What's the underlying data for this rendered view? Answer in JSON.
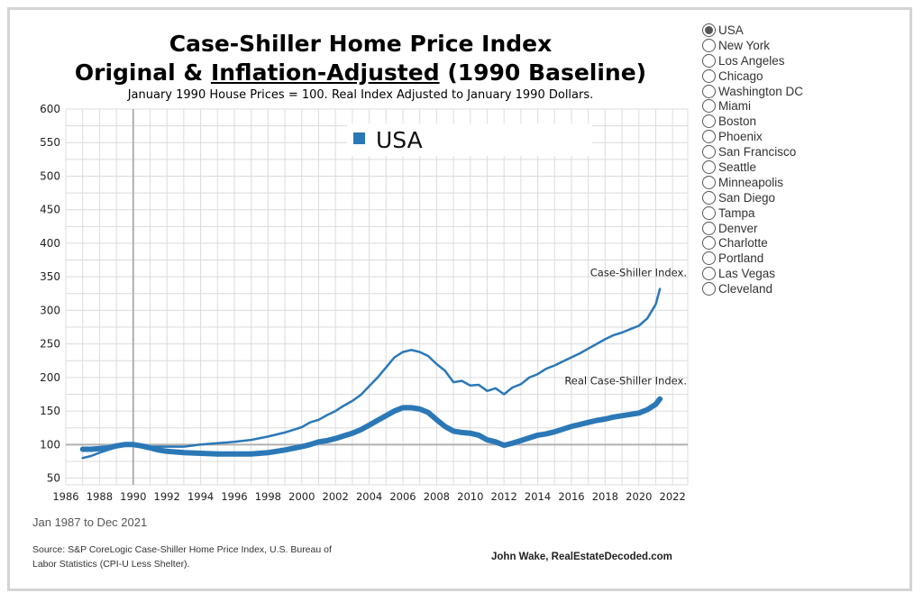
{
  "titles": {
    "line1": "Case-Shiller Home Price Index",
    "line2_prefix": "Original & ",
    "line2_underlined": "Inflation-Adjusted",
    "line2_suffix": " (1990 Baseline)",
    "subtitle": "January 1990 House Prices = 100. Real Index Adjusted to January 1990 Dollars."
  },
  "selector": {
    "selected": "USA",
    "options": [
      "USA",
      "New York",
      "Los Angeles",
      "Chicago",
      "Washington DC",
      "Miami",
      "Boston",
      "Phoenix",
      "San Francisco",
      "Seattle",
      "Minneapolis",
      "San Diego",
      "Tampa",
      "Denver",
      "Charlotte",
      "Portland",
      "Las Vegas",
      "Cleveland"
    ]
  },
  "footer": {
    "range": "Jan 1987 to Dec 2021",
    "source": "Source: S&P CoreLogic Case-Shiller Home Price Index, U.S. Bureau of Labor Statistics (CPI-U Less Shelter).",
    "credit": "John Wake, RealEstateDecoded.com"
  },
  "chart_data": {
    "type": "line",
    "legend": "USA",
    "xlim": [
      1986,
      2022.9
    ],
    "ylim": [
      40,
      600
    ],
    "x_ticks": [
      "1986",
      "1988",
      "1990",
      "1992",
      "1994",
      "1996",
      "1998",
      "2000",
      "2002",
      "2004",
      "2006",
      "2008",
      "2010",
      "2012",
      "2014",
      "2016",
      "2018",
      "2020",
      "2022"
    ],
    "y_ticks": [
      50,
      100,
      150,
      200,
      250,
      300,
      350,
      400,
      450,
      500,
      550,
      600
    ],
    "reference_line_y": 100,
    "reference_line_x": 1990,
    "colors": {
      "series": "#2b78b7",
      "grid": "#dcdcdc",
      "axis": "#b0b0b0"
    },
    "series": [
      {
        "name": "Case-Shiller Index.",
        "line_width": 2.5,
        "x": [
          1987,
          1987.5,
          1988,
          1988.5,
          1989,
          1989.5,
          1990,
          1990.5,
          1991,
          1992,
          1993,
          1994,
          1995,
          1996,
          1997,
          1998,
          1999,
          2000,
          2000.5,
          2001,
          2001.5,
          2002,
          2002.5,
          2003,
          2003.5,
          2004,
          2004.5,
          2005,
          2005.5,
          2006,
          2006.5,
          2007,
          2007.5,
          2008,
          2008.5,
          2009,
          2009.5,
          2010,
          2010.5,
          2011,
          2011.5,
          2012,
          2012.5,
          2013,
          2013.5,
          2014,
          2014.5,
          2015,
          2015.5,
          2016,
          2016.5,
          2017,
          2017.5,
          2018,
          2018.5,
          2019,
          2019.5,
          2020,
          2020.5,
          2021,
          2021.25
        ],
        "y": [
          80,
          83,
          88,
          92,
          96,
          99,
          100,
          99,
          97,
          97,
          97,
          100,
          102,
          104,
          107,
          112,
          118,
          126,
          133,
          137,
          144,
          150,
          158,
          165,
          174,
          187,
          200,
          215,
          230,
          238,
          241,
          238,
          232,
          220,
          210,
          193,
          195,
          188,
          189,
          180,
          184,
          175,
          185,
          190,
          200,
          205,
          213,
          218,
          224,
          230,
          236,
          243,
          250,
          257,
          263,
          267,
          272,
          277,
          288,
          309,
          332
        ]
      },
      {
        "name": "Real Case-Shiller Index.",
        "line_width": 6,
        "x": [
          1987,
          1987.5,
          1988,
          1988.5,
          1989,
          1989.5,
          1990,
          1990.5,
          1991,
          1991.5,
          1992,
          1992.5,
          1993,
          1994,
          1995,
          1996,
          1997,
          1998,
          1999,
          2000,
          2000.5,
          2001,
          2001.5,
          2002,
          2002.5,
          2003,
          2003.5,
          2004,
          2004.5,
          2005,
          2005.5,
          2006,
          2006.5,
          2007,
          2007.5,
          2008,
          2008.5,
          2009,
          2009.5,
          2010,
          2010.5,
          2011,
          2011.5,
          2012,
          2012.5,
          2013,
          2013.5,
          2014,
          2014.5,
          2015,
          2015.5,
          2016,
          2016.5,
          2017,
          2017.5,
          2018,
          2018.5,
          2019,
          2019.5,
          2020,
          2020.5,
          2021,
          2021.25
        ],
        "y": [
          93,
          93,
          94,
          95,
          98,
          100,
          100,
          98,
          95,
          92,
          90,
          89,
          88,
          87,
          86,
          86,
          86,
          88,
          92,
          97,
          100,
          104,
          106,
          109,
          113,
          117,
          122,
          129,
          136,
          143,
          150,
          155,
          155,
          153,
          148,
          137,
          127,
          120,
          118,
          117,
          114,
          107,
          104,
          99,
          102,
          106,
          110,
          114,
          116,
          119,
          123,
          127,
          130,
          133,
          136,
          138,
          141,
          143,
          145,
          147,
          152,
          160,
          168
        ]
      }
    ]
  }
}
